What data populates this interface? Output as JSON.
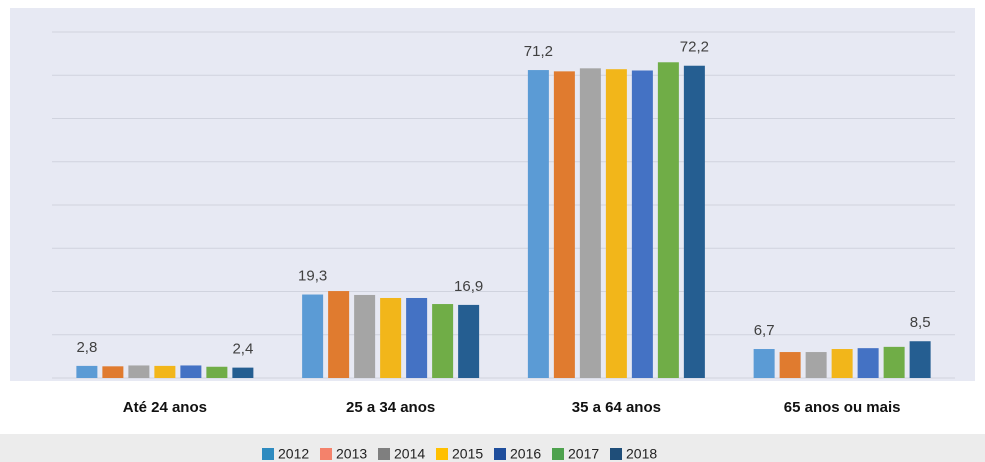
{
  "chart_data": {
    "type": "bar",
    "categories": [
      "Até 24 anos",
      "25 a 34 anos",
      "35 a 64 anos",
      "65 anos ou mais"
    ],
    "ylim": [
      0,
      80
    ],
    "yticks": [
      0,
      10,
      20,
      30,
      40,
      50,
      60,
      70,
      80
    ],
    "grid": true,
    "series": [
      {
        "name": "2012",
        "color": "#5b9bd5",
        "legend_color": "#2e8bc0",
        "values": [
          2.8,
          19.3,
          71.2,
          6.7
        ],
        "value_labels": [
          "2,8",
          "19,3",
          "71,2",
          "6,7"
        ]
      },
      {
        "name": "2013",
        "color": "#e07b2f",
        "legend_color": "#f4826b",
        "values": [
          2.7,
          20.1,
          70.9,
          6.0
        ]
      },
      {
        "name": "2014",
        "color": "#a5a5a5",
        "legend_color": "#7f7f7f",
        "values": [
          2.9,
          19.2,
          71.6,
          6.0
        ]
      },
      {
        "name": "2015",
        "color": "#f2b61a",
        "legend_color": "#ffc000",
        "values": [
          2.8,
          18.5,
          71.4,
          6.7
        ]
      },
      {
        "name": "2016",
        "color": "#4472c4",
        "legend_color": "#1f4e9c",
        "values": [
          2.9,
          18.5,
          71.1,
          6.9
        ]
      },
      {
        "name": "2017",
        "color": "#70ad47",
        "legend_color": "#4ea24e",
        "values": [
          2.6,
          17.1,
          73.0,
          7.2
        ]
      },
      {
        "name": "2018",
        "color": "#255e91",
        "legend_color": "#1f4e79",
        "values": [
          2.4,
          16.9,
          72.2,
          8.5
        ],
        "value_labels": [
          "2,4",
          "16,9",
          "72,2",
          "8,5"
        ]
      }
    ]
  }
}
